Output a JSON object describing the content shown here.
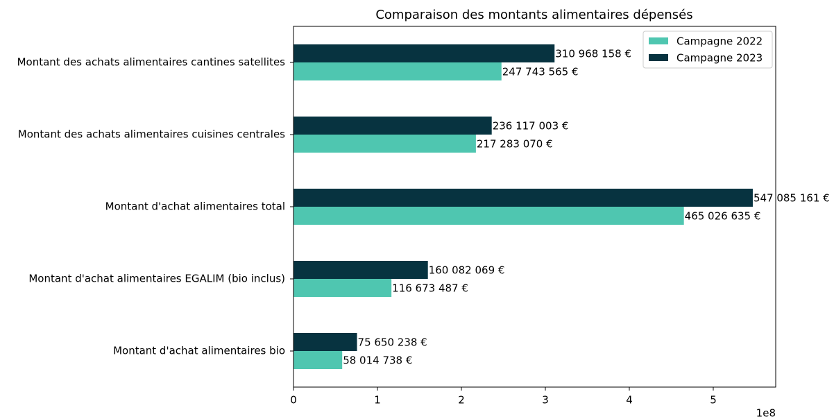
{
  "chart_data": {
    "type": "barh",
    "title": "Comparaison des montants alimentaires dépensés",
    "categories": [
      "Montant des achats alimentaires cantines satellites",
      "Montant des achats alimentaires cuisines centrales",
      "Montant d'achat alimentaires total",
      "Montant d'achat alimentaires EGALIM (bio inclus)",
      "Montant d'achat alimentaires bio"
    ],
    "series": [
      {
        "name": "Campagne 2022",
        "color": "#4fc6b0",
        "values": [
          247743565,
          217283070,
          465026635,
          116673487,
          58014738
        ],
        "value_labels": [
          "247 743 565 €",
          "217 283 070 €",
          "465 026 635 €",
          "116 673 487 €",
          "58 014 738 €"
        ]
      },
      {
        "name": "Campagne 2023",
        "color": "#073340",
        "values": [
          310968158,
          236117003,
          547085161,
          160082069,
          75650238
        ],
        "value_labels": [
          "310 968 158 €",
          "236 117 003 €",
          "547 085 161 €",
          "160 082 069 €",
          "75 650 238 €"
        ]
      }
    ],
    "xlim": [
      0,
      574400000
    ],
    "xticks": [
      0,
      {
        "value": 100000000,
        "label": "1"
      },
      {
        "value": 200000000,
        "label": "2"
      },
      {
        "value": 300000000,
        "label": "3"
      },
      {
        "value": 400000000,
        "label": "4"
      },
      {
        "value": 500000000,
        "label": "5"
      }
    ],
    "x_offset_label": "1e8",
    "legend": "upper right"
  }
}
